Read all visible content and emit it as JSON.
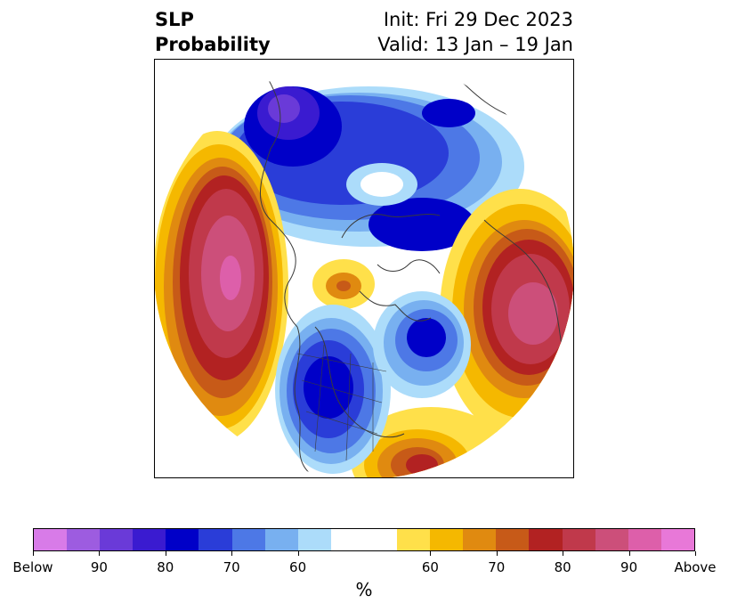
{
  "title": {
    "left_line1": "SLP",
    "left_line2": "Probability",
    "right_line1": "Init: Fri 29 Dec 2023",
    "right_line2": "Valid: 13 Jan – 19 Jan"
  },
  "colorbar": {
    "unit": "%",
    "colors": [
      "#d87be8",
      "#9d5ce0",
      "#6a3ad8",
      "#3a1bd0",
      "#0000c8",
      "#2a3dd8",
      "#4d78e6",
      "#78b0f0",
      "#acdcfa",
      "#ffffff",
      "#ffffff",
      "#ffe04a",
      "#f5b800",
      "#e08a10",
      "#c75a18",
      "#b22222",
      "#c0394b",
      "#cc4f7a",
      "#dd5faa",
      "#e878d8"
    ],
    "labels": [
      "Below",
      "90",
      "80",
      "70",
      "60",
      "60",
      "70",
      "80",
      "90",
      "Above"
    ]
  },
  "colors": {
    "land_outline": "#3a3a3a"
  }
}
